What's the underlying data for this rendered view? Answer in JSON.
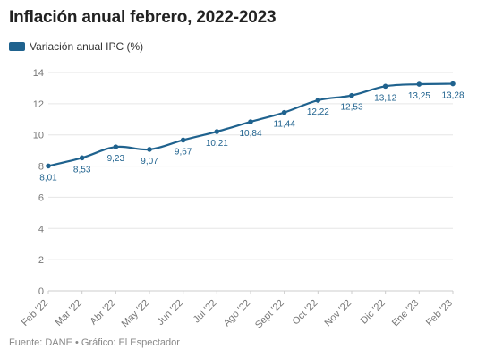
{
  "header": {
    "title": "Inflación anual febrero, 2022-2023"
  },
  "legend": {
    "label": "Variación anual IPC (%)"
  },
  "footer": {
    "source": "Fuente: DANE • Gráfico: El Espectador"
  },
  "colors": {
    "series": "#1f628e",
    "grid": "#e6e6e6",
    "axis": "#cccccc"
  },
  "chart_data": {
    "type": "line",
    "title": "Inflación anual febrero, 2022-2023",
    "xlabel": "",
    "ylabel": "",
    "ylim": [
      0,
      14
    ],
    "yticks": [
      0,
      2,
      4,
      6,
      8,
      10,
      12,
      14
    ],
    "grid": true,
    "legend_position": "top-left",
    "categories": [
      "Feb '22",
      "Mar '22",
      "Abr '22",
      "May '22",
      "Jun '22",
      "Jul '22",
      "Ago '22",
      "Sept '22",
      "Oct '22",
      "Nov '22",
      "Dic '22",
      "Ene '23",
      "Feb '23"
    ],
    "series": [
      {
        "name": "Variación anual IPC (%)",
        "values": [
          8.01,
          8.53,
          9.23,
          9.07,
          9.67,
          10.21,
          10.84,
          11.44,
          12.22,
          12.53,
          13.12,
          13.25,
          13.28
        ],
        "labels": [
          "8,01",
          "8,53",
          "9,23",
          "9,07",
          "9,67",
          "10,21",
          "10,84",
          "11,44",
          "12,22",
          "12,53",
          "13,12",
          "13,25",
          "13,28"
        ]
      }
    ]
  }
}
